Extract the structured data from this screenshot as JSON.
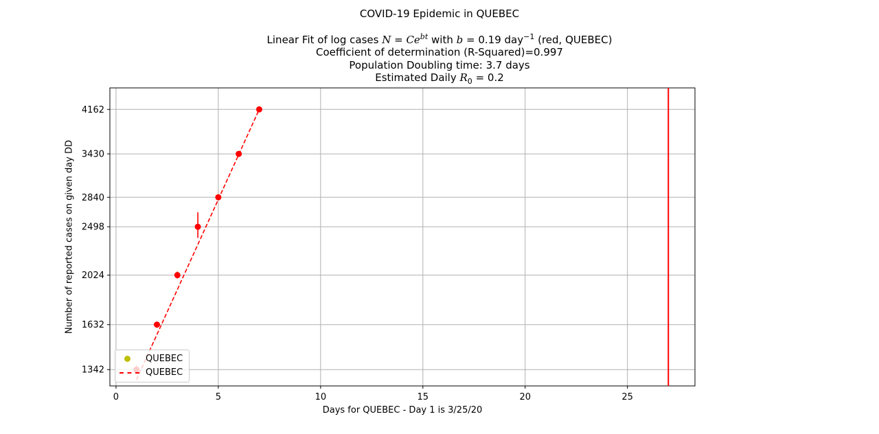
{
  "header": {
    "title": "COVID-19 Epidemic in QUEBEC",
    "fit_prefix": "Linear Fit of log cases ",
    "fit_formula_N": "N",
    "fit_formula_eq": " = ",
    "fit_formula_C": "Ce",
    "fit_formula_exp": "bt",
    "fit_mid": " with ",
    "fit_b": "b",
    "fit_b_value": " = 0.19 day",
    "fit_b_exp": "−1",
    "fit_suffix": " (red, QUEBEC)",
    "r_squared": "Coefficient of determination (R-Squared)=0.997",
    "doubling": "Population Doubling time: 3.7 days",
    "r0_prefix": "Estimated Daily ",
    "r0_R": "R",
    "r0_sub": "0",
    "r0_value": " = 0.2"
  },
  "legend": {
    "items": [
      {
        "label": "QUEBEC",
        "color": "#bfbf00",
        "kind": "marker"
      },
      {
        "label": "QUEBEC",
        "color": "#ff0000",
        "kind": "dashed-line"
      }
    ]
  },
  "colors": {
    "data": "#ff0000",
    "fit": "#ff0000",
    "grid": "#b0b0b0",
    "vline": "#ff0000",
    "legend_marker": "#bfbf00"
  },
  "chart_data": {
    "type": "scatter",
    "title": "COVID-19 Epidemic in QUEBEC",
    "xlabel": "Days for QUEBEC - Day 1 is 3/25/20",
    "ylabel": "Number of reported cases on given day DD",
    "y_scale": "log",
    "xlim": [
      -0.3,
      28.3
    ],
    "ylim": [
      1250,
      4570
    ],
    "x_ticks": [
      0,
      5,
      10,
      15,
      20,
      25
    ],
    "y_ticks": [
      1342,
      1632,
      2024,
      2498,
      2840,
      3430,
      4162
    ],
    "grid": true,
    "legend_position": "lower-left",
    "series": [
      {
        "name": "QUEBEC",
        "kind": "points",
        "x": [
          1,
          2,
          3,
          4,
          5,
          6,
          7
        ],
        "y": [
          1342,
          1632,
          2024,
          2498,
          2840,
          3430,
          4162
        ],
        "error_bars": [
          {
            "x": 1,
            "low": 1320,
            "high": 1365
          },
          {
            "x": 2,
            "low": 1610,
            "high": 1650
          },
          {
            "x": 3,
            "low": 1995,
            "high": 2055
          },
          {
            "x": 4,
            "low": 2380,
            "high": 2660
          },
          {
            "x": 5,
            "low": 2815,
            "high": 2865
          },
          {
            "x": 6,
            "low": 3400,
            "high": 3460
          },
          {
            "x": 7,
            "low": 4130,
            "high": 4195
          }
        ]
      },
      {
        "name": "QUEBEC",
        "kind": "fit-dashed",
        "x": [
          1,
          7
        ],
        "y": [
          1285,
          4162
        ]
      }
    ],
    "vertical_line_x": 27
  }
}
